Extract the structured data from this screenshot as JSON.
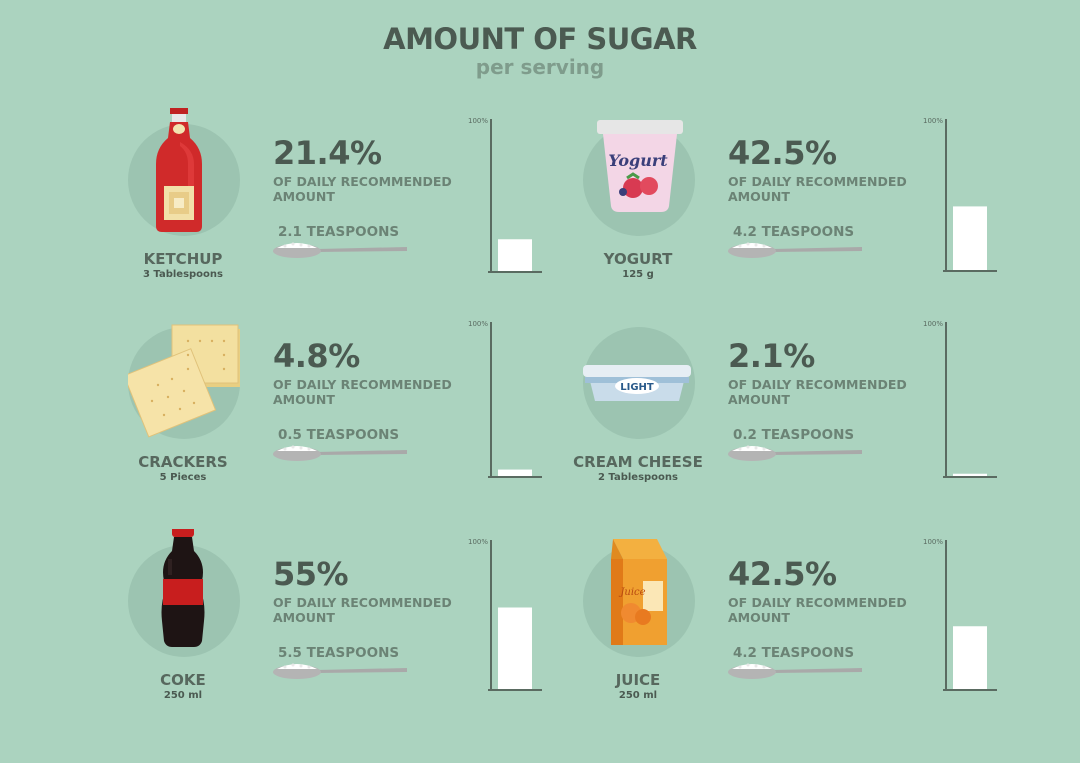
{
  "title": "AMOUNT OF SUGAR",
  "subtitle": "per serving",
  "desc_line1": "OF DAILY RECOMMENDED",
  "desc_line2": "AMOUNT",
  "axis_max_label": "100%",
  "colors": {
    "background": "#abd3bf",
    "circle": "#9cc4b1",
    "bar": "#ffffff",
    "axis": "#5a6b61",
    "ketchup": "#d02a2a",
    "coke": "#c81e1e",
    "juice": "#f0a030"
  },
  "items": [
    {
      "name": "KETCHUP",
      "serving": "3 Tablespoons",
      "percent": "21.4%",
      "teaspoons": "2.1  TEASPOONS",
      "icon": "ketchup-bottle-icon"
    },
    {
      "name": "YOGURT",
      "serving": "125 g",
      "percent": "42.5%",
      "teaspoons": "4.2  TEASPOONS",
      "icon": "yogurt-cup-icon",
      "label": "Yogurt"
    },
    {
      "name": "CRACKERS",
      "serving": "5 Pieces",
      "percent": "4.8%",
      "teaspoons": "0.5  TEASPOONS",
      "icon": "crackers-icon"
    },
    {
      "name": "CREAM CHEESE",
      "serving": "2 Tablespoons",
      "percent": "2.1%",
      "teaspoons": "0.2  TEASPOONS",
      "icon": "cream-cheese-tub-icon",
      "label": "LIGHT"
    },
    {
      "name": "COKE",
      "serving": "250 ml",
      "percent": "55%",
      "teaspoons": "5.5  TEASPOONS",
      "icon": "coke-bottle-icon"
    },
    {
      "name": "JUICE",
      "serving": "250 ml",
      "percent": "42.5%",
      "teaspoons": "4.2  TEASPOONS",
      "icon": "juice-carton-icon",
      "label": "Juice"
    }
  ],
  "chart_data": {
    "type": "bar",
    "categories": [
      "KETCHUP",
      "YOGURT",
      "CRACKERS",
      "CREAM CHEESE",
      "COKE",
      "JUICE"
    ],
    "values": [
      21.4,
      42.5,
      4.8,
      2.1,
      55,
      42.5
    ],
    "unit": "%",
    "ylim": [
      0,
      100
    ],
    "title": "AMOUNT OF SUGAR",
    "subtitle": "per serving"
  }
}
